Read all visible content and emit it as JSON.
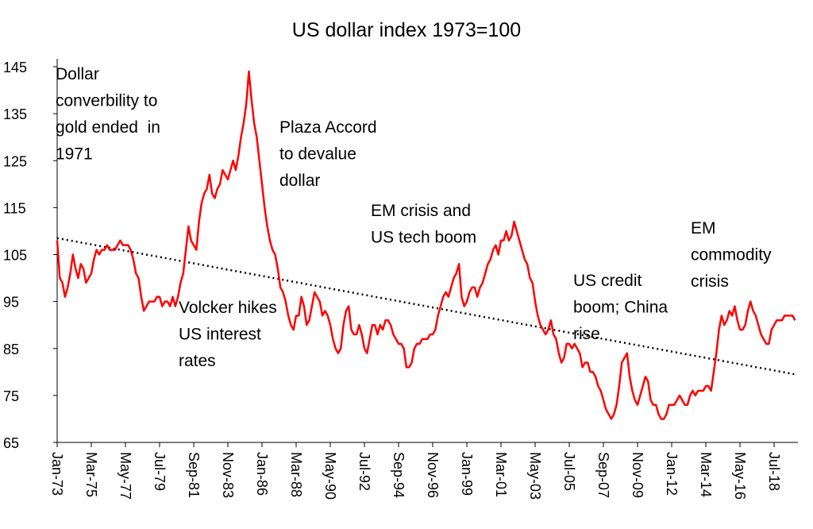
{
  "chart_data": {
    "type": "line",
    "title": "US dollar index 1973=100",
    "categories": [
      "Jan-73",
      null,
      null,
      null,
      null,
      null,
      null,
      null,
      null,
      null,
      null,
      null,
      null,
      "Mar-75",
      null,
      null,
      null,
      null,
      null,
      null,
      null,
      null,
      null,
      null,
      null,
      null,
      "May-77",
      null,
      null,
      null,
      null,
      null,
      null,
      null,
      null,
      null,
      null,
      null,
      null,
      "Jul-79",
      null,
      null,
      null,
      null,
      null,
      null,
      null,
      null,
      null,
      null,
      null,
      null,
      "Sep-81",
      null,
      null,
      null,
      null,
      null,
      null,
      null,
      null,
      null,
      null,
      null,
      null,
      "Nov-83",
      null,
      null,
      null,
      null,
      null,
      null,
      null,
      null,
      null,
      null,
      null,
      null,
      "Jan-86",
      null,
      null,
      null,
      null,
      null,
      null,
      null,
      null,
      null,
      null,
      null,
      null,
      "Mar-88",
      null,
      null,
      null,
      null,
      null,
      null,
      null,
      null,
      null,
      null,
      null,
      null,
      "May-90",
      null,
      null,
      null,
      null,
      null,
      null,
      null,
      null,
      null,
      null,
      null,
      null,
      "Jul-92",
      null,
      null,
      null,
      null,
      null,
      null,
      null,
      null,
      null,
      null,
      null,
      null,
      "Sep-94",
      null,
      null,
      null,
      null,
      null,
      null,
      null,
      null,
      null,
      null,
      null,
      null,
      "Nov-96",
      null,
      null,
      null,
      null,
      null,
      null,
      null,
      null,
      null,
      null,
      null,
      null,
      "Jan-99",
      null,
      null,
      null,
      null,
      null,
      null,
      null,
      null,
      null,
      null,
      null,
      null,
      "Mar-01",
      null,
      null,
      null,
      null,
      null,
      null,
      null,
      null,
      null,
      null,
      null,
      null,
      "May-03",
      null,
      null,
      null,
      null,
      null,
      null,
      null,
      null,
      null,
      null,
      null,
      null,
      "Jul-05",
      null,
      null,
      null,
      null,
      null,
      null,
      null,
      null,
      null,
      null,
      null,
      null,
      "Sep-07",
      null,
      null,
      null,
      null,
      null,
      null,
      null,
      null,
      null,
      null,
      null,
      null,
      "Nov-09",
      null,
      null,
      null,
      null,
      null,
      null,
      null,
      null,
      null,
      null,
      null,
      null,
      "Jan-12",
      null,
      null,
      null,
      null,
      null,
      null,
      null,
      null,
      null,
      null,
      null,
      null,
      "Mar-14",
      null,
      null,
      null,
      null,
      null,
      null,
      null,
      null,
      null,
      null,
      null,
      null,
      "May-16",
      null,
      null,
      null,
      null,
      null,
      null,
      null,
      null,
      null,
      null,
      null,
      null,
      "Jul-18",
      null,
      null,
      null,
      null,
      null,
      null,
      null,
      null
    ],
    "series": [
      {
        "color": "#ff0000",
        "values": [
          108,
          100,
          99,
          96,
          98,
          101,
          105,
          102,
          100,
          103,
          102,
          99,
          100,
          101,
          104,
          106,
          105,
          106,
          106,
          107,
          106,
          106,
          106,
          107,
          108,
          107,
          107,
          107,
          106,
          104,
          101,
          100,
          96,
          93,
          94,
          95,
          95,
          95,
          96,
          96,
          94,
          95,
          95,
          94,
          96,
          94,
          96,
          99,
          101,
          106,
          111,
          108,
          107,
          106,
          112,
          116,
          118,
          119,
          122,
          118,
          117,
          119,
          120,
          123,
          122,
          121,
          123,
          125,
          123,
          126,
          130,
          133,
          137,
          144,
          138,
          133,
          130,
          125,
          120,
          115,
          111,
          108,
          106,
          105,
          102,
          98,
          97,
          95,
          92,
          90,
          89,
          92,
          92,
          96,
          94,
          90,
          91,
          94,
          97,
          96,
          95,
          92,
          93,
          92,
          90,
          87,
          85,
          84,
          85,
          90,
          93,
          94,
          89,
          88,
          88,
          90,
          88,
          85,
          84,
          87,
          90,
          90,
          88,
          90,
          89,
          91,
          91,
          90,
          88,
          87,
          86,
          86,
          85,
          81,
          81,
          82,
          85,
          86,
          86,
          87,
          87,
          87,
          88,
          88,
          89,
          92,
          94,
          96,
          97,
          96,
          98,
          100,
          101,
          103,
          96,
          94,
          95,
          97,
          98,
          98,
          96,
          98,
          99,
          101,
          103,
          104,
          106,
          107,
          105,
          108,
          108,
          110,
          108,
          109,
          112,
          110,
          108,
          106,
          104,
          103,
          100,
          99,
          95,
          92,
          90,
          89,
          88,
          89,
          91,
          88,
          87,
          84,
          82,
          83,
          86,
          86,
          85,
          86,
          85,
          84,
          81,
          82,
          82,
          80,
          80,
          79,
          77,
          76,
          74,
          72,
          71,
          70,
          71,
          73,
          77,
          82,
          83,
          84,
          79,
          76,
          74,
          73,
          75,
          77,
          79,
          78,
          74,
          73,
          73,
          71,
          70,
          70,
          71,
          73,
          73,
          73,
          74,
          75,
          74,
          73,
          73,
          75,
          76,
          75,
          76,
          76,
          76,
          77,
          77,
          76,
          80,
          84,
          89,
          92,
          90,
          91,
          93,
          92,
          94,
          91,
          89,
          89,
          90,
          93,
          95,
          93,
          92,
          90,
          88,
          87,
          86,
          86,
          89,
          90,
          91,
          91,
          91,
          92,
          92,
          92,
          92,
          91
        ]
      }
    ],
    "trendline": {
      "start": 108.5,
      "end": 79.5,
      "color": "#000000"
    },
    "ylim": [
      65,
      145
    ],
    "yticks": [
      65,
      75,
      85,
      95,
      105,
      115,
      125,
      135,
      145
    ],
    "grid": false,
    "annotations": [
      [
        "Dollar",
        "converbility to",
        "gold ended  in",
        "1971"
      ],
      [
        "Plaza Accord",
        "to devalue",
        "dollar"
      ],
      [
        "EM crisis and",
        "US tech boom"
      ],
      [
        "Volcker hikes",
        "US interest",
        "rates"
      ],
      [
        "US credit",
        "boom; China",
        "rise"
      ],
      [
        "EM",
        "commodity",
        "crisis"
      ]
    ]
  }
}
